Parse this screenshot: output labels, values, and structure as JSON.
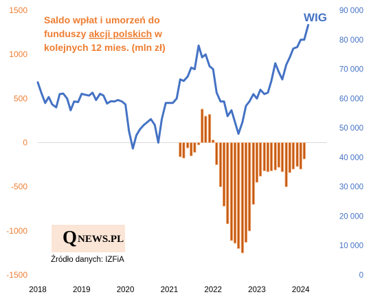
{
  "chart_data": {
    "type": "bar+line",
    "title_lines": [
      {
        "text": "Saldo wpłat i umorzeń do"
      },
      {
        "text_pre": "funduszy ",
        "text_u": "akcji polskich",
        "text_post": " w"
      },
      {
        "text": "kolejnych 12 mies. (mln zł)"
      }
    ],
    "wig_label": "WIG",
    "left_axis": {
      "min": -1500,
      "max": 1500,
      "ticks": [
        "1500",
        "1000",
        "500",
        "0",
        "-500",
        "-1000",
        "-1500"
      ]
    },
    "right_axis": {
      "min": 0,
      "max": 90000,
      "ticks": [
        "90 000",
        "80 000",
        "70 000",
        "60 000",
        "50 000",
        "40 000",
        "30 000",
        "20 000",
        "10 000",
        "0"
      ]
    },
    "x_axis": {
      "start": 2018.0,
      "end": 2024.6,
      "ticks": [
        "2018",
        "2019",
        "2020",
        "2021",
        "2022",
        "2023",
        "2024"
      ]
    },
    "colors": {
      "wig_line": "#4472C4",
      "bars": "#C55A11",
      "bar_edge": "#F4B183",
      "title": "#ED7D31"
    },
    "bars": {
      "name": "Saldo wpłat i umorzeń (mln zł)",
      "t": [
        2021.25,
        2021.33,
        2021.42,
        2021.5,
        2021.58,
        2021.67,
        2021.75,
        2021.83,
        2021.92,
        2022.0,
        2022.08,
        2022.17,
        2022.25,
        2022.33,
        2022.42,
        2022.5,
        2022.58,
        2022.67,
        2022.75,
        2022.83,
        2022.92,
        2023.0,
        2023.08,
        2023.17,
        2023.25,
        2023.33,
        2023.42,
        2023.5,
        2023.58,
        2023.67,
        2023.75,
        2023.83,
        2023.92,
        2024.0,
        2024.08
      ],
      "values": [
        -160,
        -175,
        -60,
        -150,
        -110,
        -25,
        380,
        300,
        320,
        30,
        -250,
        -500,
        -720,
        -920,
        -1110,
        -1140,
        -1200,
        -1250,
        -1130,
        -1000,
        -700,
        -450,
        -380,
        -320,
        -330,
        -320,
        -310,
        -280,
        -330,
        -500,
        -340,
        -300,
        -270,
        -300,
        -185
      ]
    },
    "wig": {
      "name": "WIG",
      "t": [
        2018.0,
        2018.08,
        2018.17,
        2018.25,
        2018.33,
        2018.42,
        2018.5,
        2018.58,
        2018.67,
        2018.75,
        2018.83,
        2018.92,
        2019.0,
        2019.08,
        2019.17,
        2019.25,
        2019.33,
        2019.42,
        2019.5,
        2019.58,
        2019.67,
        2019.75,
        2019.83,
        2019.92,
        2020.0,
        2020.08,
        2020.17,
        2020.25,
        2020.33,
        2020.42,
        2020.5,
        2020.58,
        2020.67,
        2020.75,
        2020.83,
        2020.92,
        2021.0,
        2021.08,
        2021.17,
        2021.25,
        2021.33,
        2021.42,
        2021.5,
        2021.58,
        2021.67,
        2021.75,
        2021.83,
        2021.92,
        2022.0,
        2022.08,
        2022.17,
        2022.25,
        2022.33,
        2022.42,
        2022.5,
        2022.58,
        2022.67,
        2022.75,
        2022.83,
        2022.92,
        2023.0,
        2023.08,
        2023.17,
        2023.25,
        2023.33,
        2023.42,
        2023.5,
        2023.58,
        2023.67,
        2023.75,
        2023.83,
        2023.92,
        2024.0,
        2024.08,
        2024.17
      ],
      "values": [
        65500,
        62000,
        58500,
        60500,
        58000,
        57000,
        61500,
        61700,
        60000,
        56000,
        59000,
        58800,
        61600,
        61300,
        61000,
        62000,
        59500,
        61600,
        61000,
        58300,
        59100,
        59000,
        59500,
        59000,
        58000,
        49000,
        43000,
        47500,
        49500,
        51000,
        52000,
        53000,
        51000,
        45000,
        53000,
        58500,
        58500,
        58500,
        60000,
        66500,
        66000,
        67500,
        70500,
        70000,
        78000,
        74000,
        75000,
        71000,
        70000,
        62000,
        59000,
        59000,
        54000,
        56000,
        52000,
        48000,
        52000,
        57500,
        59000,
        61500,
        60000,
        63000,
        61500,
        62000,
        66000,
        72000,
        69000,
        66500,
        71500,
        74000,
        77000,
        77500,
        80000,
        80000,
        85000
      ]
    }
  },
  "logo": {
    "q": "Q",
    "rest": "NEWS.PL"
  },
  "source": "Źródło danych: IZFiA"
}
